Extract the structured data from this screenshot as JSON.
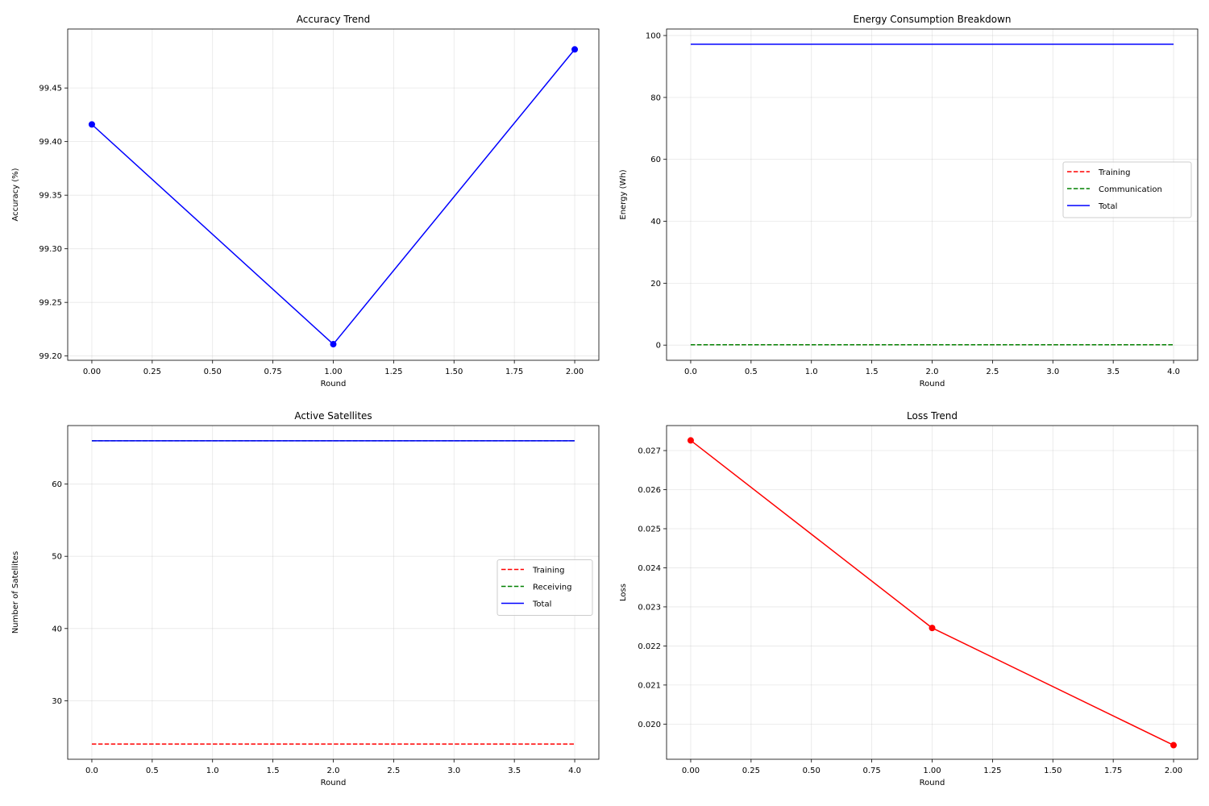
{
  "chart_data": [
    {
      "type": "line",
      "title": "Accuracy Trend",
      "xlabel": "Round",
      "ylabel": "Accuracy (%)",
      "xlim": [
        -0.1,
        2.1
      ],
      "ylim": [
        99.196,
        99.505
      ],
      "xticks": [
        0,
        0.25,
        0.5,
        0.75,
        1.0,
        1.25,
        1.5,
        1.75,
        2.0
      ],
      "xtick_labels": [
        "0.00",
        "0.25",
        "0.50",
        "0.75",
        "1.00",
        "1.25",
        "1.50",
        "1.75",
        "2.00"
      ],
      "yticks": [
        99.2,
        99.25,
        99.3,
        99.35,
        99.4,
        99.45
      ],
      "ytick_labels": [
        "99.20",
        "99.25",
        "99.30",
        "99.35",
        "99.40",
        "99.45"
      ],
      "grid": true,
      "legend": null,
      "series": [
        {
          "x": [
            0,
            1,
            2
          ],
          "values": [
            99.416,
            99.211,
            99.486
          ],
          "color": "#0000ff",
          "dash": "solid",
          "markers": true
        }
      ]
    },
    {
      "type": "line",
      "title": "Energy Consumption Breakdown",
      "xlabel": "Round",
      "ylabel": "Energy (Wh)",
      "xlim": [
        -0.2,
        4.2
      ],
      "ylim": [
        -4.9,
        102.1
      ],
      "xticks": [
        0,
        0.5,
        1,
        1.5,
        2,
        2.5,
        3,
        3.5,
        4
      ],
      "xtick_labels": [
        "0.0",
        "0.5",
        "1.0",
        "1.5",
        "2.0",
        "2.5",
        "3.0",
        "3.5",
        "4.0"
      ],
      "yticks": [
        0,
        20,
        40,
        60,
        80,
        100
      ],
      "ytick_labels": [
        "0",
        "20",
        "40",
        "60",
        "80",
        "100"
      ],
      "grid": true,
      "legend": "center-right",
      "series": [
        {
          "name": "Training",
          "x": [
            0,
            1,
            2,
            3,
            4
          ],
          "values": [
            0.1,
            0.1,
            0.1,
            0.1,
            0.1
          ],
          "color": "#ff0000",
          "dash": "dashed",
          "markers": false
        },
        {
          "name": "Communication",
          "x": [
            0,
            1,
            2,
            3,
            4
          ],
          "values": [
            0.1,
            0.1,
            0.1,
            0.1,
            0.1
          ],
          "color": "#008000",
          "dash": "dashed",
          "markers": false
        },
        {
          "name": "Total",
          "x": [
            0,
            1,
            2,
            3,
            4
          ],
          "values": [
            97.2,
            97.2,
            97.2,
            97.2,
            97.2
          ],
          "color": "#0000ff",
          "dash": "solid",
          "markers": false
        }
      ]
    },
    {
      "type": "line",
      "title": "Active Satellites",
      "xlabel": "Round",
      "ylabel": "Number of Satellites",
      "xlim": [
        -0.2,
        4.2
      ],
      "ylim": [
        21.9,
        68.1
      ],
      "xticks": [
        0,
        0.5,
        1,
        1.5,
        2,
        2.5,
        3,
        3.5,
        4
      ],
      "xtick_labels": [
        "0.0",
        "0.5",
        "1.0",
        "1.5",
        "2.0",
        "2.5",
        "3.0",
        "3.5",
        "4.0"
      ],
      "yticks": [
        30,
        40,
        50,
        60
      ],
      "ytick_labels": [
        "30",
        "40",
        "50",
        "60"
      ],
      "grid": true,
      "legend": "center-right",
      "series": [
        {
          "name": "Training",
          "x": [
            0,
            1,
            2,
            3,
            4
          ],
          "values": [
            24,
            24,
            24,
            24,
            24
          ],
          "color": "#ff0000",
          "dash": "dashed",
          "markers": false
        },
        {
          "name": "Receiving",
          "x": [
            0,
            1,
            2,
            3,
            4
          ],
          "values": [
            66,
            66,
            66,
            66,
            66
          ],
          "color": "#008000",
          "dash": "dashed",
          "markers": false
        },
        {
          "name": "Total",
          "x": [
            0,
            1,
            2,
            3,
            4
          ],
          "values": [
            66,
            66,
            66,
            66,
            66
          ],
          "color": "#0000ff",
          "dash": "solid",
          "markers": false
        }
      ]
    },
    {
      "type": "line",
      "title": "Loss Trend",
      "xlabel": "Round",
      "ylabel": "Loss",
      "xlim": [
        -0.1,
        2.1
      ],
      "ylim": [
        0.0191,
        0.02764
      ],
      "xticks": [
        0,
        0.25,
        0.5,
        0.75,
        1.0,
        1.25,
        1.5,
        1.75,
        2.0
      ],
      "xtick_labels": [
        "0.00",
        "0.25",
        "0.50",
        "0.75",
        "1.00",
        "1.25",
        "1.50",
        "1.75",
        "2.00"
      ],
      "yticks": [
        0.02,
        0.021,
        0.022,
        0.023,
        0.024,
        0.025,
        0.026,
        0.027
      ],
      "ytick_labels": [
        "0.020",
        "0.021",
        "0.022",
        "0.023",
        "0.024",
        "0.025",
        "0.026",
        "0.027"
      ],
      "grid": true,
      "legend": null,
      "series": [
        {
          "x": [
            0,
            1,
            2
          ],
          "values": [
            0.02726,
            0.02246,
            0.01946
          ],
          "color": "#ff0000",
          "dash": "solid",
          "markers": true
        }
      ]
    }
  ]
}
